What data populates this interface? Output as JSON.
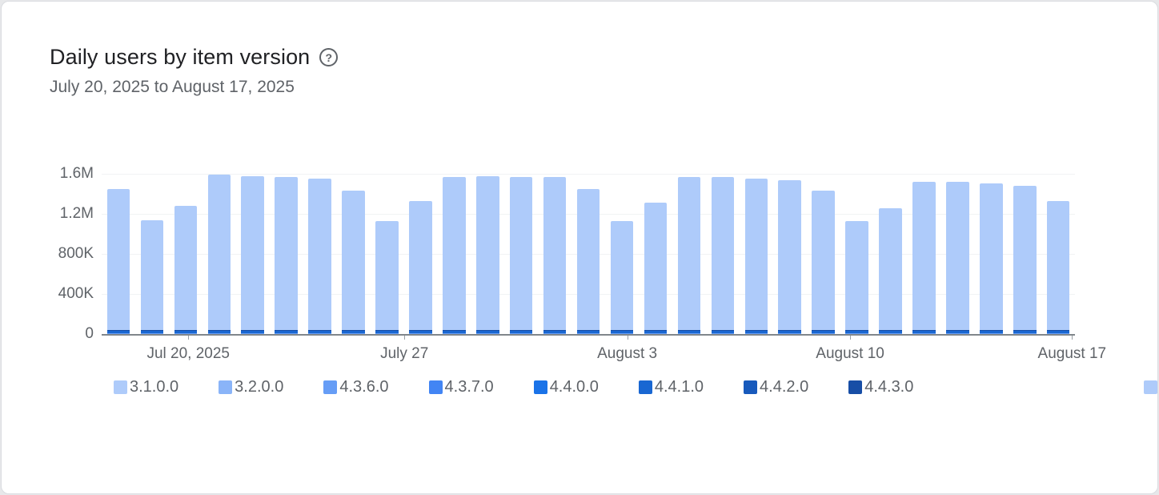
{
  "page": {
    "background": "#e7e8ea",
    "card_background": "#ffffff"
  },
  "header": {
    "title": "Daily users by item version",
    "help_glyph": "?",
    "date_range": "July 20, 2025 to August 17, 2025"
  },
  "chart_data": {
    "type": "bar",
    "stacked": true,
    "title": "Daily users by item version",
    "date_range_label": "July 20, 2025 to August 17, 2025",
    "xlabel": "",
    "ylabel": "",
    "ylim": [
      0,
      1600000
    ],
    "grid": true,
    "legend_position": "bottom",
    "axis_color": "#80868b",
    "y_ticks": [
      {
        "label": "0",
        "value": 0
      },
      {
        "label": "400K",
        "value": 400000
      },
      {
        "label": "800K",
        "value": 800000
      },
      {
        "label": "1.2M",
        "value": 1200000
      },
      {
        "label": "1.6M",
        "value": 1600000
      }
    ],
    "x_ticks": [
      {
        "label": "Jul 20, 2025",
        "position_pct": 8.9
      },
      {
        "label": "July 27",
        "position_pct": 31.1
      },
      {
        "label": "August 3",
        "position_pct": 54.0
      },
      {
        "label": "August 10",
        "position_pct": 76.9
      },
      {
        "label": "August 17",
        "position_pct": 99.7
      }
    ],
    "categories": [
      "Jul 20",
      "Jul 21",
      "Jul 22",
      "Jul 23",
      "Jul 24",
      "Jul 25",
      "Jul 26",
      "Jul 27",
      "Jul 28",
      "Jul 29",
      "Jul 30",
      "Jul 31",
      "Aug 1",
      "Aug 2",
      "Aug 3",
      "Aug 4",
      "Aug 5",
      "Aug 6",
      "Aug 7",
      "Aug 8",
      "Aug 9",
      "Aug 10",
      "Aug 11",
      "Aug 12",
      "Aug 13",
      "Aug 14",
      "Aug 15",
      "Aug 16",
      "Aug 17"
    ],
    "totals": [
      1450000,
      1140000,
      1280000,
      1590000,
      1575000,
      1570000,
      1555000,
      1430000,
      1125000,
      1330000,
      1570000,
      1575000,
      1570000,
      1565000,
      1450000,
      1130000,
      1310000,
      1570000,
      1570000,
      1555000,
      1540000,
      1430000,
      1125000,
      1260000,
      1520000,
      1520000,
      1505000,
      1480000,
      1330000
    ],
    "series": [
      {
        "label": "3.1.0.0",
        "color": "#aecbfa",
        "daily_users_approx": 1500
      },
      {
        "label": "3.2.0.0",
        "color": "#8ab4f8",
        "daily_users_approx": 2500
      },
      {
        "label": "4.3.6.0",
        "color": "#669df6",
        "daily_users_approx": 1500
      },
      {
        "label": "4.3.7.0",
        "color": "#4285f4",
        "daily_users_approx": 2000
      },
      {
        "label": "4.4.0.0",
        "color": "#1a73e8",
        "daily_users_approx": 4000
      },
      {
        "label": "4.4.1.0",
        "color": "#1967d2",
        "daily_users_approx": 18000
      },
      {
        "label": "4.4.2.0",
        "color": "#185abc",
        "daily_users_approx": 5000
      },
      {
        "label": "4.4.3.0",
        "color": "#174ea6",
        "daily_users_approx": 3000
      },
      {
        "label": "",
        "color": "#aecbfa",
        "dominant": true
      }
    ]
  }
}
